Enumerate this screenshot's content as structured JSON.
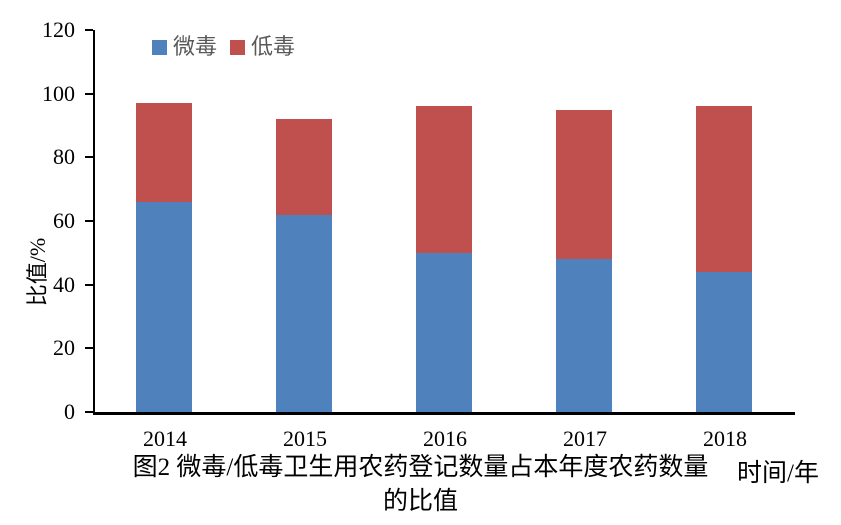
{
  "page": {
    "background": "#ffffff"
  },
  "colors": {
    "axis": "#000000",
    "tick_label_text": "#000000",
    "legend_text": "#595959",
    "caption_text": "#000000",
    "series_weidu_blue": "#4F81BD",
    "series_didu_red": "#C0504D"
  },
  "chart_data": {
    "type": "bar",
    "subtype": "stacked",
    "categories": [
      "2014",
      "2015",
      "2016",
      "2017",
      "2018"
    ],
    "series": [
      {
        "name": "微毒",
        "color": "#4F81BD",
        "values": [
          66,
          62,
          50,
          48,
          44
        ]
      },
      {
        "name": "低毒",
        "color": "#C0504D",
        "values": [
          31,
          30,
          46,
          47,
          52
        ]
      }
    ],
    "stacked_totals": [
      97,
      92,
      96,
      95,
      96
    ],
    "title": "",
    "ylabel": "比值/%",
    "xlabel": "时间/年",
    "ylim": [
      0,
      120
    ],
    "yticks": [
      0,
      20,
      40,
      60,
      80,
      100,
      120
    ],
    "grid": false,
    "legend_position": "top",
    "caption_line1": "图2 微毒/低毒卫生用农药登记数量占本年度农药数量",
    "caption_line2": "的比值"
  }
}
